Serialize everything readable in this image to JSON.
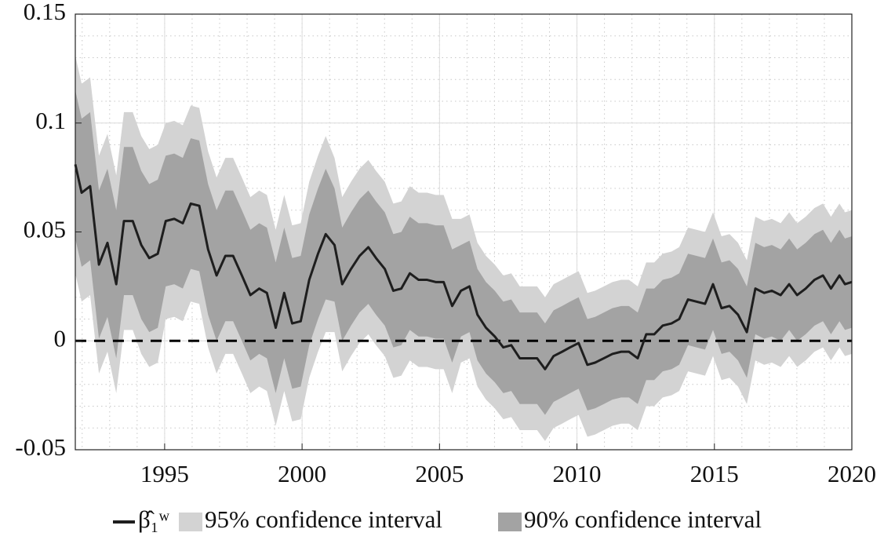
{
  "chart_data": {
    "type": "line",
    "x": [
      1991.75,
      1991.98,
      1992.29,
      1992.61,
      1992.92,
      1993.24,
      1993.52,
      1993.84,
      1994.15,
      1994.44,
      1994.75,
      1995.04,
      1995.35,
      1995.66,
      1995.95,
      1996.26,
      1996.58,
      1996.89,
      1997.21,
      1997.49,
      1997.81,
      1998.12,
      1998.44,
      1998.72,
      1999.04,
      1999.35,
      1999.64,
      1999.95,
      2000.26,
      2000.58,
      2000.86,
      2001.18,
      2001.46,
      2001.78,
      2002.09,
      2002.41,
      2002.69,
      2003.01,
      2003.32,
      2003.61,
      2003.92,
      2004.24,
      2004.55,
      2004.86,
      2005.15,
      2005.46,
      2005.78,
      2006.09,
      2006.38,
      2006.69,
      2007.01,
      2007.32,
      2007.61,
      2007.92,
      2008.24,
      2008.55,
      2008.84,
      2009.15,
      2009.46,
      2009.75,
      2010.06,
      2010.38,
      2010.66,
      2010.98,
      2011.29,
      2011.61,
      2011.89,
      2012.21,
      2012.52,
      2012.81,
      2013.12,
      2013.44,
      2013.72,
      2014.04,
      2014.35,
      2014.66,
      2014.95,
      2015.26,
      2015.55,
      2015.86,
      2016.18,
      2016.49,
      2016.81,
      2017.09,
      2017.41,
      2017.72,
      2018.01,
      2018.32,
      2018.64,
      2018.95,
      2019.24,
      2019.55,
      2019.75,
      2020
    ],
    "series": [
      {
        "name": "β̂₁ʷ",
        "color": "#1e1e1e",
        "values": [
          0.081,
          0.068,
          0.071,
          0.035,
          0.045,
          0.026,
          0.055,
          0.055,
          0.044,
          0.038,
          0.04,
          0.055,
          0.056,
          0.054,
          0.063,
          0.062,
          0.042,
          0.03,
          0.039,
          0.039,
          0.03,
          0.021,
          0.024,
          0.022,
          0.006,
          0.022,
          0.008,
          0.009,
          0.028,
          0.04,
          0.049,
          0.044,
          0.026,
          0.033,
          0.039,
          0.043,
          0.038,
          0.033,
          0.023,
          0.024,
          0.031,
          0.028,
          0.028,
          0.027,
          0.027,
          0.016,
          0.023,
          0.025,
          0.012,
          0.006,
          0.002,
          -0.003,
          -0.002,
          -0.008,
          -0.008,
          -0.008,
          -0.013,
          -0.007,
          -0.005,
          -0.003,
          -0.001,
          -0.011,
          -0.01,
          -0.008,
          -0.006,
          -0.005,
          -0.005,
          -0.008,
          0.003,
          0.003,
          0.007,
          0.008,
          0.01,
          0.019,
          0.018,
          0.017,
          0.026,
          0.015,
          0.016,
          0.012,
          0.004,
          0.024,
          0.022,
          0.023,
          0.021,
          0.026,
          0.021,
          0.024,
          0.028,
          0.03,
          0.024,
          0.03,
          0.026,
          0.027
        ]
      }
    ],
    "bands": [
      {
        "name": "95% confidence interval",
        "color": "#d3d3d3",
        "margin": [
          0.05,
          0.05,
          0.05,
          0.05,
          0.05,
          0.05,
          0.05,
          0.05,
          0.05,
          0.05,
          0.05,
          0.045,
          0.045,
          0.045,
          0.045,
          0.045,
          0.045,
          0.045,
          0.045,
          0.045,
          0.045,
          0.045,
          0.045,
          0.045,
          0.045,
          0.045,
          0.045,
          0.045,
          0.045,
          0.045,
          0.045,
          0.04,
          0.04,
          0.04,
          0.04,
          0.04,
          0.04,
          0.04,
          0.04,
          0.04,
          0.04,
          0.04,
          0.04,
          0.04,
          0.04,
          0.04,
          0.033,
          0.033,
          0.033,
          0.033,
          0.033,
          0.033,
          0.033,
          0.033,
          0.033,
          0.033,
          0.033,
          0.033,
          0.033,
          0.033,
          0.033,
          0.033,
          0.033,
          0.033,
          0.033,
          0.033,
          0.033,
          0.033,
          0.033,
          0.033,
          0.033,
          0.033,
          0.033,
          0.033,
          0.033,
          0.033,
          0.033,
          0.033,
          0.033,
          0.033,
          0.033,
          0.033,
          0.033,
          0.033,
          0.033,
          0.033,
          0.033,
          0.033,
          0.033,
          0.033,
          0.033,
          0.033,
          0.033,
          0.033
        ]
      },
      {
        "name": "90% confidence interval",
        "color": "#a3a3a3",
        "margin": [
          0.034,
          0.034,
          0.034,
          0.034,
          0.034,
          0.034,
          0.034,
          0.034,
          0.034,
          0.034,
          0.034,
          0.03,
          0.03,
          0.03,
          0.03,
          0.03,
          0.03,
          0.03,
          0.03,
          0.03,
          0.03,
          0.03,
          0.03,
          0.03,
          0.03,
          0.03,
          0.03,
          0.03,
          0.03,
          0.03,
          0.03,
          0.026,
          0.026,
          0.026,
          0.026,
          0.026,
          0.026,
          0.026,
          0.026,
          0.026,
          0.026,
          0.026,
          0.026,
          0.026,
          0.026,
          0.026,
          0.021,
          0.021,
          0.021,
          0.021,
          0.021,
          0.021,
          0.021,
          0.021,
          0.021,
          0.021,
          0.021,
          0.021,
          0.021,
          0.021,
          0.021,
          0.021,
          0.021,
          0.021,
          0.021,
          0.021,
          0.021,
          0.021,
          0.021,
          0.021,
          0.021,
          0.021,
          0.021,
          0.021,
          0.021,
          0.021,
          0.021,
          0.021,
          0.021,
          0.021,
          0.021,
          0.021,
          0.021,
          0.021,
          0.021,
          0.021,
          0.021,
          0.021,
          0.021,
          0.021,
          0.021,
          0.021,
          0.021,
          0.021
        ]
      }
    ],
    "xlim": [
      1991.75,
      2020
    ],
    "ylim": [
      -0.05,
      0.15
    ],
    "xticks": [
      1995,
      2000,
      2005,
      2010,
      2015,
      2020
    ],
    "yticks": [
      -0.05,
      0,
      0.05,
      0.1,
      0.15
    ],
    "reference_line": 0,
    "grid": true,
    "minor_grid": true,
    "legend": "bottom"
  }
}
